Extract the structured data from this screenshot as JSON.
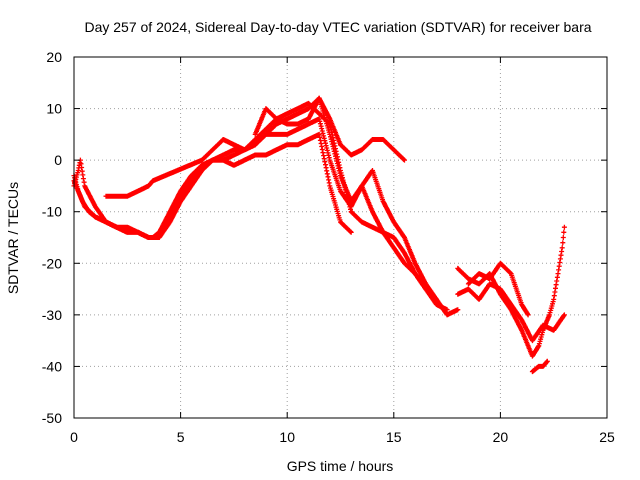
{
  "chart_data": {
    "type": "scatter",
    "title": "Day 257 of 2024, Sidereal Day-to-day VTEC variation (SDTVAR) for receiver bara",
    "xlabel": "GPS time / hours",
    "ylabel": "SDTVAR / TECUs",
    "xlim": [
      0,
      25
    ],
    "ylim": [
      -50,
      20
    ],
    "xticks": [
      0,
      5,
      10,
      15,
      20,
      25
    ],
    "yticks": [
      -50,
      -40,
      -30,
      -20,
      -10,
      0,
      10,
      20
    ],
    "xtick_labels": [
      "0",
      "5",
      "10",
      "15",
      "20",
      "25"
    ],
    "ytick_labels": [
      "-50",
      "-40",
      "-30",
      "-20",
      "-10",
      "0",
      "10",
      "20"
    ],
    "grid": true,
    "marker": "plus",
    "color": "#ff0000",
    "series": [
      {
        "name": "track-1",
        "x": [
          0.0,
          0.2,
          0.3,
          0.5,
          1.0,
          1.5,
          2.0,
          2.5,
          3.0,
          3.5,
          3.7,
          4.0,
          4.5,
          5.0,
          5.5,
          6.0,
          6.5,
          7.0,
          7.5,
          8.0,
          8.5,
          9.0,
          9.5,
          10.0,
          10.5,
          11.0,
          11.5,
          12.0,
          12.5,
          13.0
        ],
        "y": [
          -5,
          -2,
          0,
          -5,
          -9,
          -12,
          -13,
          -14,
          -14,
          -15,
          -15,
          -14,
          -11,
          -7,
          -4,
          -1,
          0,
          0,
          -1,
          0,
          1,
          1,
          2,
          3,
          3,
          4,
          5,
          -5,
          -12,
          -14
        ]
      },
      {
        "name": "track-2",
        "x": [
          0.0,
          0.2,
          0.4,
          0.7,
          1.0,
          1.5,
          2.0,
          2.5,
          3.0,
          3.5,
          3.8,
          4.0,
          4.5,
          5.0,
          5.5,
          6.0,
          6.5,
          7.0,
          7.5,
          8.0,
          8.5,
          9.0,
          9.5,
          10.0,
          10.5,
          11.0,
          11.5,
          12.0,
          12.5,
          13.0,
          13.5,
          14.0,
          14.5,
          15.0,
          15.5,
          16.0,
          16.5,
          17.0
        ],
        "y": [
          -3,
          -6,
          -8,
          -10,
          -11,
          -12,
          -13,
          -13,
          -14,
          -15,
          -15,
          -14,
          -10,
          -6,
          -3,
          -1,
          0,
          0,
          1,
          2,
          3,
          5,
          5,
          5,
          6,
          7,
          8,
          0,
          -6,
          -9,
          -5,
          -10,
          -14,
          -17,
          -20,
          -22,
          -25,
          -27
        ]
      },
      {
        "name": "track-3",
        "x": [
          0.0,
          0.3,
          0.5,
          1.0,
          1.5,
          2.0,
          2.5,
          3.0,
          3.5,
          4.0,
          4.5,
          5.0,
          5.5,
          6.0,
          6.5,
          7.0,
          7.5,
          8.0,
          8.5,
          9.0,
          9.5,
          10.0,
          10.5,
          11.0,
          11.5,
          12.0,
          12.5,
          13.0,
          13.5,
          14.0,
          14.5,
          15.0,
          15.5,
          16.0,
          16.5,
          17.0,
          17.5,
          18.0
        ],
        "y": [
          -4,
          -7,
          -9,
          -11,
          -12,
          -13,
          -14,
          -14,
          -15,
          -15,
          -12,
          -8,
          -5,
          -2,
          0,
          1,
          2,
          2,
          3,
          5,
          7,
          8,
          9,
          10,
          12,
          5,
          -3,
          -8,
          -5,
          -2,
          -8,
          -12,
          -15,
          -20,
          -24,
          -27,
          -30,
          -29
        ]
      },
      {
        "name": "track-4",
        "x": [
          1.5,
          2.0,
          2.5,
          3.0,
          3.5,
          3.7,
          6.0,
          6.5,
          7.0,
          7.5,
          8.0,
          8.5,
          9.0,
          9.5,
          10.0,
          10.5,
          11.0,
          11.5,
          12.0,
          12.5,
          13.0,
          13.5,
          14.0,
          14.5,
          15.0,
          15.5
        ],
        "y": [
          -7,
          -7,
          -7,
          -6,
          -5,
          -4,
          0,
          2,
          4,
          3,
          2,
          4,
          6,
          8,
          7,
          7,
          8,
          12,
          8,
          3,
          1,
          2,
          4,
          4,
          2,
          0
        ]
      },
      {
        "name": "track-5",
        "x": [
          8.5,
          9.0,
          9.5,
          10.0,
          10.5,
          11.0,
          11.5,
          12.0,
          12.5,
          13.0,
          13.5,
          14.0,
          14.5,
          15.0,
          15.5,
          16.0,
          16.5,
          17.0,
          17.5
        ],
        "y": [
          5,
          10,
          8,
          9,
          10,
          11,
          9,
          7,
          -2,
          -10,
          -12,
          -13,
          -14,
          -15,
          -18,
          -22,
          -25,
          -28,
          -29
        ]
      },
      {
        "name": "track-6",
        "x": [
          18.0,
          18.5,
          19.0,
          19.5,
          20.0,
          20.5,
          21.0,
          21.5,
          21.8,
          22.0,
          22.3,
          22.5,
          22.7,
          22.9,
          23.0
        ],
        "y": [
          -21,
          -23,
          -24,
          -22,
          -26,
          -29,
          -33,
          -38,
          -36,
          -33,
          -30,
          -27,
          -22,
          -17,
          -13
        ]
      },
      {
        "name": "track-7",
        "x": [
          18.0,
          18.5,
          19.0,
          19.5,
          20.0,
          20.5,
          21.0,
          21.5,
          22.0,
          22.5,
          23.0
        ],
        "y": [
          -26,
          -25,
          -27,
          -24,
          -25,
          -28,
          -31,
          -35,
          -32,
          -33,
          -30
        ]
      },
      {
        "name": "track-8",
        "x": [
          18.5,
          19.0,
          19.5,
          20.0,
          20.5,
          21.0,
          21.3
        ],
        "y": [
          -24,
          -22,
          -23,
          -20,
          -22,
          -28,
          -30
        ]
      },
      {
        "name": "track-9",
        "x": [
          21.5,
          21.8,
          22.0,
          22.2
        ],
        "y": [
          -41,
          -40,
          -40,
          -39
        ]
      }
    ]
  }
}
